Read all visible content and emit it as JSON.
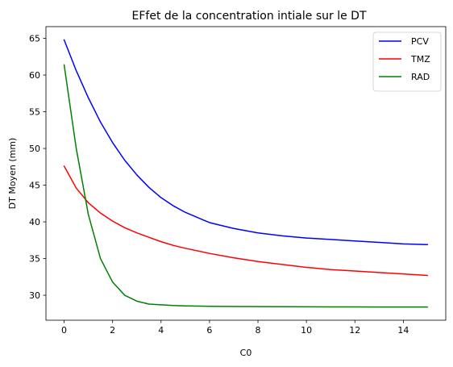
{
  "chart_data": {
    "type": "line",
    "title": "EFfet de la concentration intiale sur le DT",
    "xlabel": "C0",
    "ylabel": "DT Moyen (mm)",
    "xlim": [
      -0.75,
      15.75
    ],
    "ylim": [
      26.6,
      66.6
    ],
    "xticks": [
      0,
      2,
      4,
      6,
      8,
      10,
      12,
      14
    ],
    "yticks": [
      30,
      35,
      40,
      45,
      50,
      55,
      60,
      65
    ],
    "grid": false,
    "legend_position": "top-right",
    "x": [
      0,
      0.5,
      1,
      1.5,
      2,
      2.5,
      3,
      3.5,
      4,
      4.5,
      5,
      6,
      7,
      8,
      9,
      10,
      11,
      12,
      13,
      14,
      15
    ],
    "series": [
      {
        "name": "PCV",
        "color": "#0000ff",
        "values": [
          64.8,
          60.6,
          56.9,
          53.6,
          50.8,
          48.4,
          46.4,
          44.7,
          43.3,
          42.2,
          41.3,
          39.9,
          39.1,
          38.5,
          38.1,
          37.8,
          37.6,
          37.4,
          37.2,
          37.0,
          36.9
        ]
      },
      {
        "name": "TMZ",
        "color": "#ff0000",
        "values": [
          47.6,
          44.6,
          42.6,
          41.2,
          40.1,
          39.2,
          38.5,
          37.9,
          37.3,
          36.8,
          36.4,
          35.7,
          35.1,
          34.6,
          34.2,
          33.8,
          33.5,
          33.3,
          33.1,
          32.9,
          32.7
        ]
      },
      {
        "name": "RAD",
        "color": "#008000",
        "values": [
          61.4,
          50.0,
          41.0,
          35.0,
          31.8,
          30.0,
          29.2,
          28.8,
          28.7,
          28.6,
          28.55,
          28.5,
          28.47,
          28.45,
          28.44,
          28.43,
          28.42,
          28.41,
          28.4,
          28.4,
          28.4
        ]
      }
    ]
  }
}
